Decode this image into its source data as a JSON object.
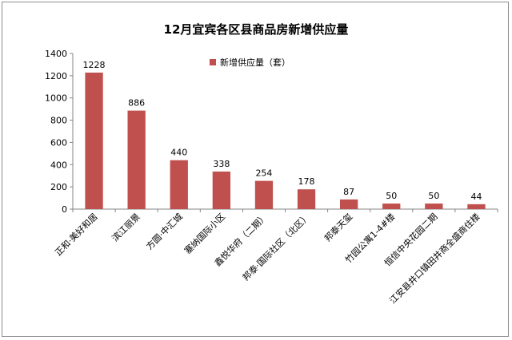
{
  "chart_data": {
    "type": "bar",
    "title": "12月宜宾各区县商品房新增供应量",
    "xlabel": "",
    "ylabel": "",
    "categories": [
      "正和·美好和居",
      "滨江丽景",
      "方圆·中汇城",
      "塞纳国际小区",
      "鑫悦华府（二期）",
      "邦泰·国际社区（北区）",
      "邦泰天玺",
      "竹园公寓1-4#楼",
      "恒信中央花园二期",
      "江安县井口镇田井商全盛商住楼"
    ],
    "series": [
      {
        "name": "新增供应量（套）",
        "values": [
          1228,
          886,
          440,
          338,
          254,
          178,
          87,
          50,
          50,
          44
        ]
      }
    ],
    "ylim": [
      0,
      1400
    ],
    "yticks": [
      0,
      200,
      400,
      600,
      800,
      1000,
      1200,
      1400
    ],
    "grid": false,
    "legend": "top-center",
    "bar_color": "#c0504d"
  }
}
